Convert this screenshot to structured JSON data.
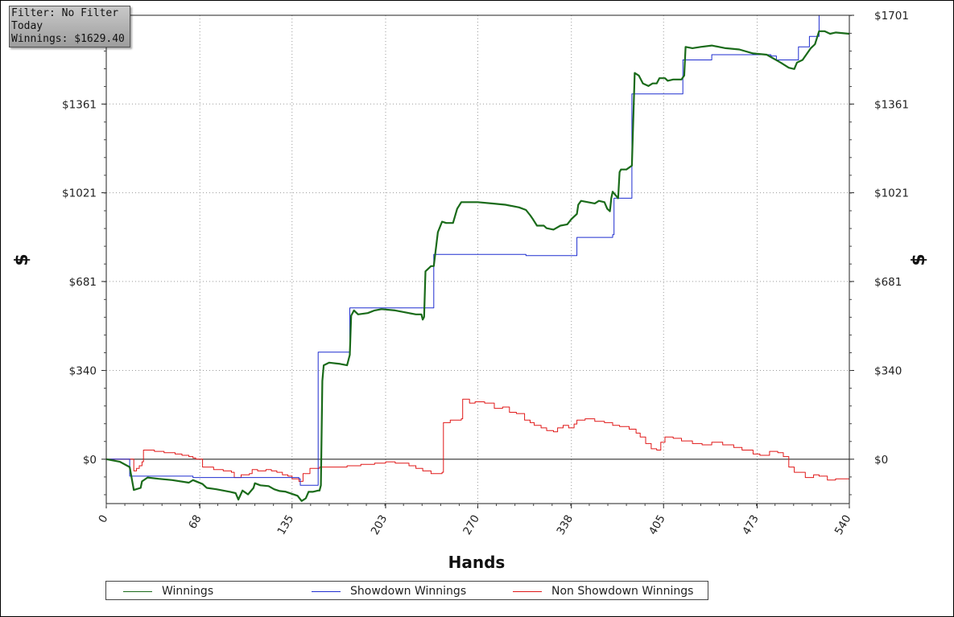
{
  "info_box": {
    "filter": "Filter: No Filter",
    "period": "Today",
    "winnings": "Winnings: $1629.40"
  },
  "chart_data": {
    "type": "line",
    "xlabel": "Hands",
    "ylabel": "$",
    "ylabel_right": "$",
    "xlim": [
      0,
      540
    ],
    "ylim": [
      -170,
      1701
    ],
    "x_ticks": [
      0,
      68,
      135,
      203,
      270,
      338,
      405,
      473,
      540
    ],
    "y_ticks": [
      {
        "value": 0,
        "label": "$0"
      },
      {
        "value": 340,
        "label": "$340"
      },
      {
        "value": 681,
        "label": "$681"
      },
      {
        "value": 1021,
        "label": "$1021"
      },
      {
        "value": 1361,
        "label": "$1361"
      },
      {
        "value": 1701,
        "label": "$1701"
      }
    ],
    "grid": true,
    "legend_position": "bottom",
    "series": [
      {
        "name": "Winnings",
        "color": "#1a6b1a",
        "step": false,
        "points": [
          [
            0,
            0
          ],
          [
            10,
            -10
          ],
          [
            17,
            -30
          ],
          [
            20,
            -118
          ],
          [
            25,
            -110
          ],
          [
            26,
            -85
          ],
          [
            30,
            -70
          ],
          [
            38,
            -75
          ],
          [
            48,
            -80
          ],
          [
            60,
            -90
          ],
          [
            63,
            -80
          ],
          [
            70,
            -95
          ],
          [
            73,
            -110
          ],
          [
            80,
            -115
          ],
          [
            85,
            -120
          ],
          [
            90,
            -125
          ],
          [
            94,
            -130
          ],
          [
            96,
            -155
          ],
          [
            99,
            -120
          ],
          [
            103,
            -135
          ],
          [
            107,
            -110
          ],
          [
            108,
            -92
          ],
          [
            112,
            -100
          ],
          [
            118,
            -103
          ],
          [
            122,
            -115
          ],
          [
            126,
            -122
          ],
          [
            130,
            -124
          ],
          [
            136,
            -135
          ],
          [
            139,
            -140
          ],
          [
            142,
            -160
          ],
          [
            145,
            -150
          ],
          [
            147,
            -125
          ],
          [
            150,
            -125
          ],
          [
            154,
            -120
          ],
          [
            155,
            -120
          ],
          [
            156,
            -100
          ],
          [
            157,
            300
          ],
          [
            158,
            360
          ],
          [
            162,
            370
          ],
          [
            170,
            365
          ],
          [
            175,
            360
          ],
          [
            177,
            400
          ],
          [
            178,
            550
          ],
          [
            180,
            570
          ],
          [
            183,
            555
          ],
          [
            190,
            560
          ],
          [
            195,
            570
          ],
          [
            200,
            575
          ],
          [
            210,
            570
          ],
          [
            220,
            560
          ],
          [
            225,
            555
          ],
          [
            229,
            555
          ],
          [
            230,
            535
          ],
          [
            231,
            545
          ],
          [
            232,
            720
          ],
          [
            236,
            740
          ],
          [
            238,
            740
          ],
          [
            241,
            870
          ],
          [
            244,
            910
          ],
          [
            247,
            905
          ],
          [
            252,
            905
          ],
          [
            255,
            960
          ],
          [
            258,
            985
          ],
          [
            264,
            985
          ],
          [
            270,
            985
          ],
          [
            280,
            980
          ],
          [
            290,
            975
          ],
          [
            300,
            965
          ],
          [
            305,
            955
          ],
          [
            308,
            935
          ],
          [
            310,
            920
          ],
          [
            313,
            895
          ],
          [
            318,
            895
          ],
          [
            320,
            885
          ],
          [
            325,
            880
          ],
          [
            330,
            895
          ],
          [
            335,
            900
          ],
          [
            338,
            920
          ],
          [
            342,
            940
          ],
          [
            343,
            975
          ],
          [
            345,
            990
          ],
          [
            350,
            985
          ],
          [
            355,
            980
          ],
          [
            358,
            990
          ],
          [
            362,
            985
          ],
          [
            364,
            960
          ],
          [
            366,
            950
          ],
          [
            367,
            1000
          ],
          [
            368,
            1025
          ],
          [
            372,
            1000
          ],
          [
            373,
            1100
          ],
          [
            374,
            1110
          ],
          [
            378,
            1110
          ],
          [
            382,
            1125
          ],
          [
            383,
            1300
          ],
          [
            384,
            1480
          ],
          [
            387,
            1470
          ],
          [
            390,
            1440
          ],
          [
            394,
            1430
          ],
          [
            397,
            1440
          ],
          [
            400,
            1440
          ],
          [
            402,
            1460
          ],
          [
            406,
            1460
          ],
          [
            408,
            1450
          ],
          [
            412,
            1455
          ],
          [
            418,
            1455
          ],
          [
            420,
            1470
          ],
          [
            421,
            1580
          ],
          [
            426,
            1575
          ],
          [
            432,
            1580
          ],
          [
            440,
            1585
          ],
          [
            450,
            1575
          ],
          [
            460,
            1570
          ],
          [
            470,
            1555
          ],
          [
            480,
            1550
          ],
          [
            490,
            1520
          ],
          [
            496,
            1500
          ],
          [
            500,
            1495
          ],
          [
            502,
            1520
          ],
          [
            506,
            1530
          ],
          [
            512,
            1575
          ],
          [
            515,
            1590
          ],
          [
            518,
            1640
          ],
          [
            522,
            1640
          ],
          [
            526,
            1630
          ],
          [
            530,
            1635
          ],
          [
            540,
            1630
          ]
        ]
      },
      {
        "name": "Showdown Winnings",
        "color": "#1f2ed0",
        "step": true,
        "points": [
          [
            0,
            0
          ],
          [
            16,
            0
          ],
          [
            17,
            -65
          ],
          [
            63,
            -70
          ],
          [
            140,
            -75
          ],
          [
            141,
            -100
          ],
          [
            153,
            -100
          ],
          [
            154,
            410
          ],
          [
            176,
            410
          ],
          [
            177,
            580
          ],
          [
            237,
            580
          ],
          [
            238,
            785
          ],
          [
            305,
            780
          ],
          [
            341,
            780
          ],
          [
            342,
            850
          ],
          [
            368,
            860
          ],
          [
            369,
            1000
          ],
          [
            381,
            1000
          ],
          [
            382,
            1400
          ],
          [
            418,
            1400
          ],
          [
            419,
            1530
          ],
          [
            440,
            1550
          ],
          [
            483,
            1545
          ],
          [
            487,
            1530
          ],
          [
            502,
            1530
          ],
          [
            503,
            1580
          ],
          [
            510,
            1580
          ],
          [
            511,
            1620
          ],
          [
            517,
            1620
          ],
          [
            518,
            1701
          ]
        ]
      },
      {
        "name": "Non Showdown Winnings",
        "color": "#e01818",
        "step": true,
        "points": [
          [
            0,
            0
          ],
          [
            20,
            -45
          ],
          [
            22,
            -35
          ],
          [
            24,
            -25
          ],
          [
            26,
            -10
          ],
          [
            27,
            35
          ],
          [
            35,
            30
          ],
          [
            42,
            25
          ],
          [
            50,
            20
          ],
          [
            55,
            15
          ],
          [
            60,
            10
          ],
          [
            63,
            5
          ],
          [
            65,
            0
          ],
          [
            70,
            -30
          ],
          [
            78,
            -40
          ],
          [
            85,
            -45
          ],
          [
            91,
            -50
          ],
          [
            93,
            -70
          ],
          [
            98,
            -60
          ],
          [
            104,
            -55
          ],
          [
            106,
            -40
          ],
          [
            110,
            -45
          ],
          [
            116,
            -40
          ],
          [
            120,
            -45
          ],
          [
            124,
            -50
          ],
          [
            128,
            -60
          ],
          [
            132,
            -65
          ],
          [
            135,
            -75
          ],
          [
            140,
            -85
          ],
          [
            143,
            -55
          ],
          [
            148,
            -35
          ],
          [
            155,
            -30
          ],
          [
            165,
            -30
          ],
          [
            175,
            -25
          ],
          [
            185,
            -20
          ],
          [
            195,
            -15
          ],
          [
            203,
            -10
          ],
          [
            210,
            -15
          ],
          [
            220,
            -25
          ],
          [
            225,
            -35
          ],
          [
            230,
            -45
          ],
          [
            236,
            -55
          ],
          [
            244,
            -50
          ],
          [
            245,
            140
          ],
          [
            250,
            150
          ],
          [
            258,
            155
          ],
          [
            259,
            230
          ],
          [
            264,
            215
          ],
          [
            268,
            220
          ],
          [
            275,
            215
          ],
          [
            282,
            195
          ],
          [
            288,
            200
          ],
          [
            293,
            180
          ],
          [
            298,
            175
          ],
          [
            304,
            150
          ],
          [
            308,
            140
          ],
          [
            311,
            130
          ],
          [
            316,
            120
          ],
          [
            320,
            110
          ],
          [
            325,
            105
          ],
          [
            328,
            120
          ],
          [
            332,
            130
          ],
          [
            336,
            120
          ],
          [
            340,
            135
          ],
          [
            342,
            150
          ],
          [
            348,
            155
          ],
          [
            355,
            145
          ],
          [
            362,
            140
          ],
          [
            368,
            130
          ],
          [
            373,
            125
          ],
          [
            380,
            115
          ],
          [
            385,
            100
          ],
          [
            388,
            85
          ],
          [
            392,
            60
          ],
          [
            396,
            40
          ],
          [
            400,
            35
          ],
          [
            403,
            65
          ],
          [
            406,
            85
          ],
          [
            412,
            80
          ],
          [
            418,
            70
          ],
          [
            426,
            60
          ],
          [
            433,
            55
          ],
          [
            440,
            65
          ],
          [
            448,
            55
          ],
          [
            456,
            45
          ],
          [
            462,
            35
          ],
          [
            470,
            20
          ],
          [
            475,
            15
          ],
          [
            482,
            30
          ],
          [
            488,
            25
          ],
          [
            492,
            10
          ],
          [
            496,
            -30
          ],
          [
            500,
            -50
          ],
          [
            508,
            -70
          ],
          [
            514,
            -60
          ],
          [
            518,
            -65
          ],
          [
            524,
            -80
          ],
          [
            530,
            -75
          ],
          [
            540,
            -70
          ]
        ]
      }
    ]
  }
}
